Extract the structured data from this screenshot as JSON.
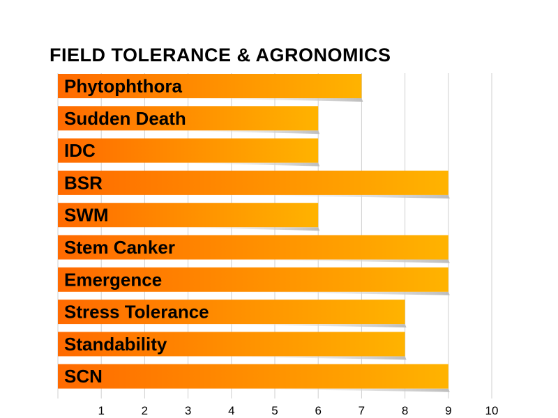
{
  "chart_data": {
    "type": "bar",
    "orientation": "horizontal",
    "title": "FIELD TOLERANCE & AGRONOMICS",
    "xlabel": "",
    "ylabel": "",
    "categories": [
      "Phytophthora",
      "Sudden Death",
      "IDC",
      "BSR",
      "SWM",
      "Stem Canker",
      "Emergence",
      "Stress Tolerance",
      "Standability",
      "SCN"
    ],
    "values": [
      7,
      6,
      6,
      9,
      6,
      9,
      9,
      8,
      8,
      9
    ],
    "xlim": [
      0,
      10
    ],
    "xticks": [
      1,
      2,
      3,
      4,
      5,
      6,
      7,
      8,
      9,
      10
    ],
    "grid": true,
    "legend": "none",
    "bar_color_start": "#ff6a00",
    "bar_color_end": "#ffb300",
    "grid_color": "#cfcfcf"
  }
}
